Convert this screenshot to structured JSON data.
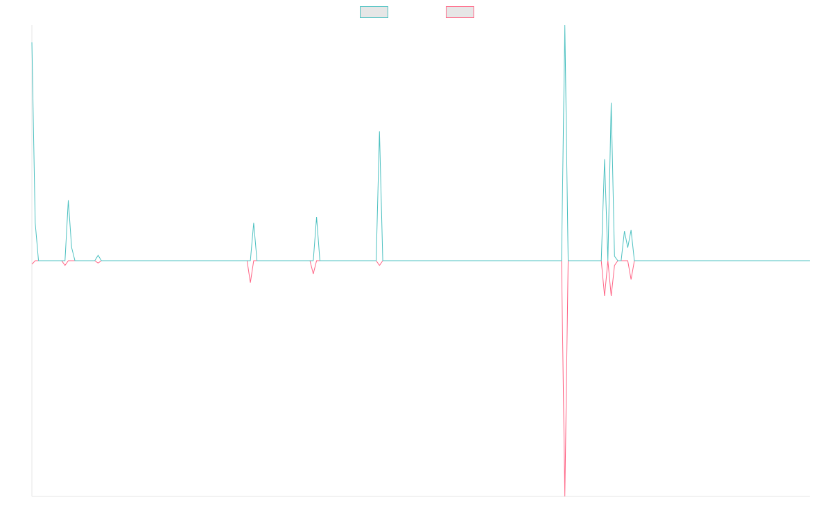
{
  "chart_data": {
    "type": "line",
    "title": "",
    "xlabel": "",
    "ylabel": "",
    "x_count": 236,
    "ylim": [
      -1,
      1
    ],
    "grid": false,
    "legend": "top",
    "series": [
      {
        "color": "#4bc0c0",
        "fill": "#e6e6e6",
        "points": [
          [
            0,
            0.926
          ],
          [
            1,
            0.161
          ],
          [
            2,
            0
          ],
          [
            10,
            0
          ],
          [
            11,
            0.256
          ],
          [
            12,
            0.056
          ],
          [
            13,
            0
          ],
          [
            19,
            0
          ],
          [
            20,
            0.023
          ],
          [
            21,
            0
          ],
          [
            66,
            0
          ],
          [
            67,
            0.16
          ],
          [
            68,
            0
          ],
          [
            85,
            0
          ],
          [
            86,
            0.185
          ],
          [
            87,
            0
          ],
          [
            104,
            0
          ],
          [
            105,
            0.549
          ],
          [
            106,
            0
          ],
          [
            160,
            0
          ],
          [
            161,
            1.0
          ],
          [
            162,
            0
          ],
          [
            172,
            0
          ],
          [
            173,
            0.431
          ],
          [
            174,
            0
          ],
          [
            175,
            0.67
          ],
          [
            176,
            0.019
          ],
          [
            177,
            0
          ],
          [
            178,
            0
          ],
          [
            179,
            0.126
          ],
          [
            180,
            0.055
          ],
          [
            181,
            0.13
          ],
          [
            182,
            0
          ],
          [
            235,
            0
          ]
        ]
      },
      {
        "color": "#ff6384",
        "fill": "#e6e6e6",
        "points": [
          [
            0,
            -0.015
          ],
          [
            1,
            0
          ],
          [
            9,
            0
          ],
          [
            10,
            -0.02
          ],
          [
            11,
            0
          ],
          [
            19,
            0
          ],
          [
            20,
            -0.01
          ],
          [
            21,
            0
          ],
          [
            65,
            0
          ],
          [
            66,
            -0.093
          ],
          [
            67,
            0
          ],
          [
            84,
            0
          ],
          [
            85,
            -0.056
          ],
          [
            86,
            0
          ],
          [
            104,
            0
          ],
          [
            105,
            -0.02
          ],
          [
            106,
            0
          ],
          [
            160,
            0
          ],
          [
            161,
            -1.0
          ],
          [
            162,
            0
          ],
          [
            172,
            0
          ],
          [
            173,
            -0.15
          ],
          [
            174,
            0
          ],
          [
            175,
            -0.15
          ],
          [
            176,
            -0.02
          ],
          [
            177,
            0
          ],
          [
            180,
            0
          ],
          [
            181,
            -0.08
          ],
          [
            182,
            0
          ],
          [
            235,
            0
          ]
        ]
      }
    ]
  }
}
